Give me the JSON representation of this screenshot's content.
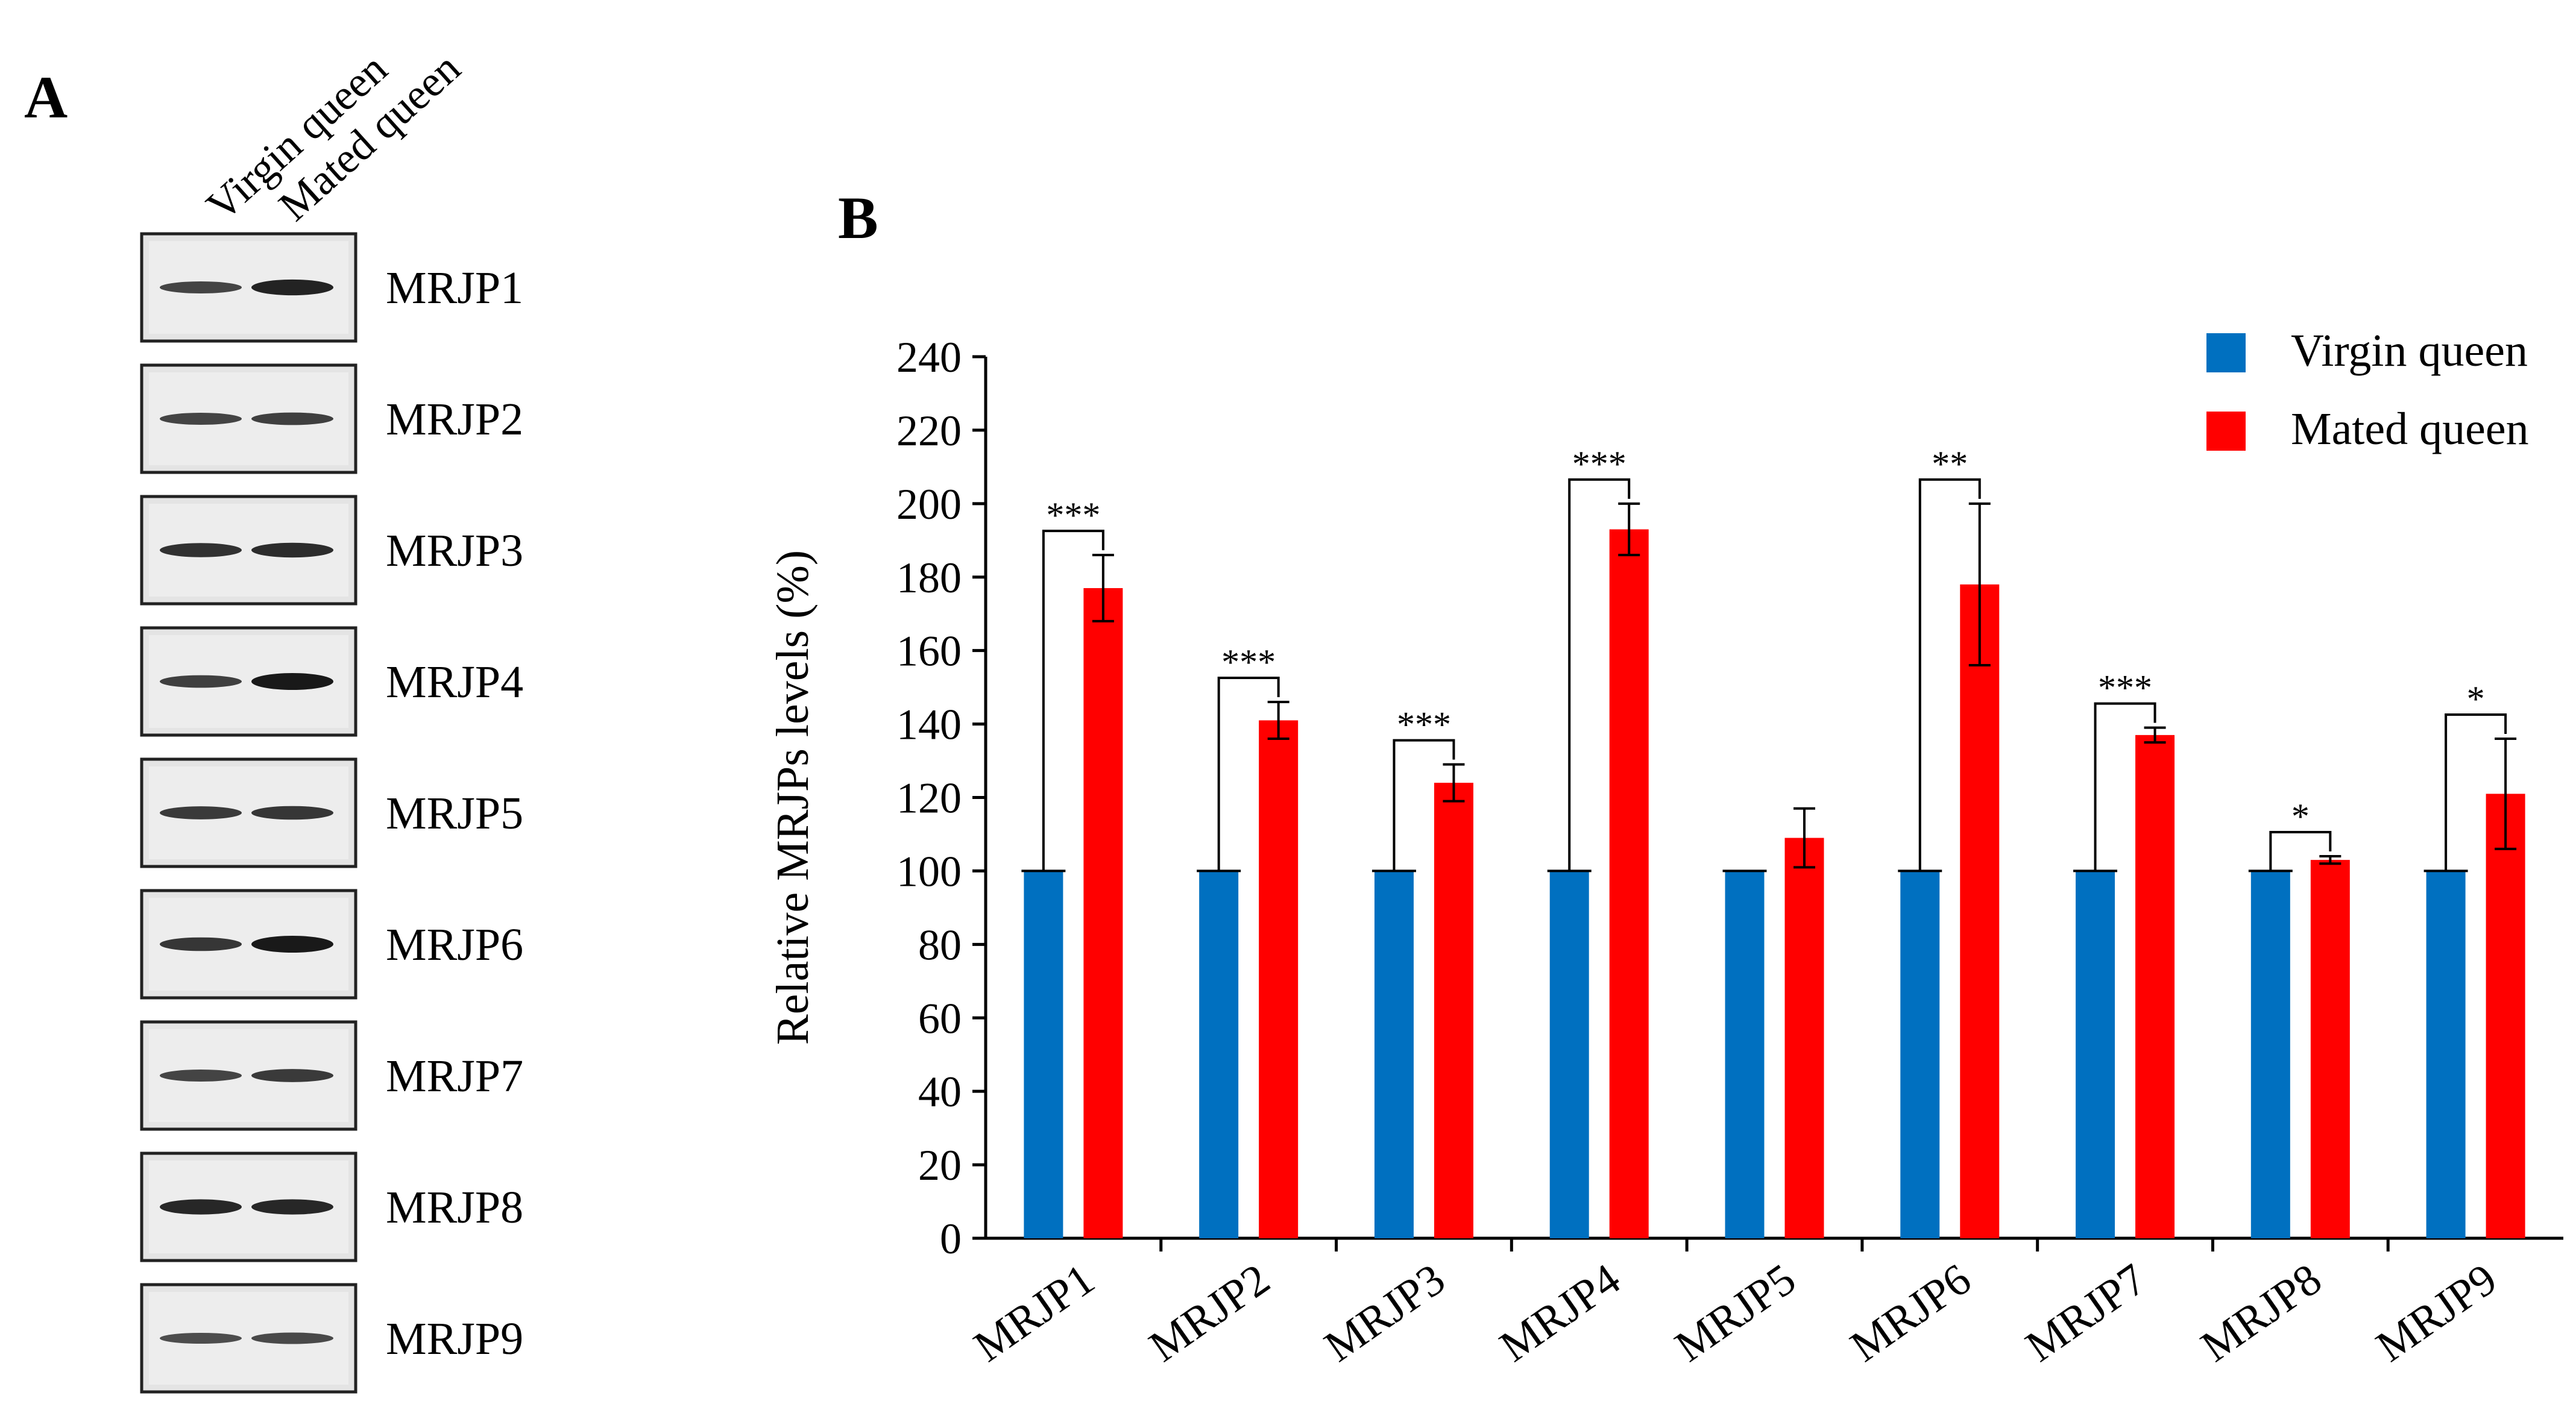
{
  "panel_a": {
    "label": "A",
    "lane_labels": [
      "Virgin queen",
      "Mated queen"
    ],
    "blots": [
      {
        "name": "MRJP1",
        "band_intensity": [
          0.55,
          0.9
        ]
      },
      {
        "name": "MRJP2",
        "band_intensity": [
          0.55,
          0.6
        ]
      },
      {
        "name": "MRJP3",
        "band_intensity": [
          0.75,
          0.8
        ]
      },
      {
        "name": "MRJP4",
        "band_intensity": [
          0.6,
          1.0
        ]
      },
      {
        "name": "MRJP5",
        "band_intensity": [
          0.65,
          0.7
        ]
      },
      {
        "name": "MRJP6",
        "band_intensity": [
          0.7,
          1.0
        ]
      },
      {
        "name": "MRJP7",
        "band_intensity": [
          0.55,
          0.65
        ]
      },
      {
        "name": "MRJP8",
        "band_intensity": [
          0.85,
          0.85
        ]
      },
      {
        "name": "MRJP9",
        "band_intensity": [
          0.45,
          0.5
        ]
      }
    ]
  },
  "panel_b_label": "B",
  "colors": {
    "virgin": "#0070C0",
    "mated": "#FF0000",
    "axis": "#000000"
  },
  "chart_data": {
    "type": "bar",
    "title": "",
    "xlabel": "",
    "ylabel": "Relative  MRJPs levels  (%)",
    "ylim": [
      0,
      240
    ],
    "yticks": [
      0,
      20,
      40,
      60,
      80,
      100,
      120,
      140,
      160,
      180,
      200,
      220,
      240
    ],
    "grid": false,
    "legend_position": "top-right",
    "categories": [
      "MRJP1",
      "MRJP2",
      "MRJP3",
      "MRJP4",
      "MRJP5",
      "MRJP6",
      "MRJP7",
      "MRJP8",
      "MRJP9"
    ],
    "series": [
      {
        "name": "Virgin queen",
        "color": "#0070C0",
        "values": [
          100,
          100,
          100,
          100,
          100,
          100,
          100,
          100,
          100
        ],
        "errors": [
          0,
          0,
          0,
          0,
          0,
          0,
          0,
          0,
          0
        ]
      },
      {
        "name": "Mated queen",
        "color": "#FF0000",
        "values": [
          177,
          141,
          124,
          193,
          109,
          178,
          137,
          103,
          121
        ],
        "errors": [
          9,
          5,
          5,
          7,
          8,
          22,
          2,
          1,
          15
        ]
      }
    ],
    "significance": [
      "***",
      "***",
      "***",
      "***",
      "",
      "**",
      "***",
      "*",
      "*"
    ]
  }
}
